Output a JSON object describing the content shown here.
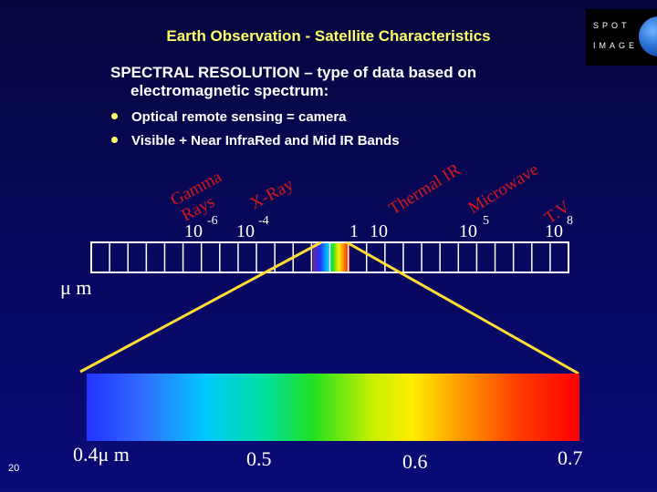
{
  "slide_title": "Earth Observation - Satellite Characteristics",
  "logo": {
    "line1": "SPOT",
    "line2": "IMAGE"
  },
  "heading": {
    "line1": "SPECTRAL RESOLUTION – type of data based on",
    "line2": "electromagnetic spectrum:"
  },
  "bullets": [
    "Optical remote sensing = camera",
    "Visible + Near InfraRed and Mid IR Bands"
  ],
  "spectrum_labels": {
    "gamma_1": "Gamma",
    "gamma_2": "Rays",
    "xray": "X-Ray",
    "thermal": "Thermal IR",
    "microwave": "Microwave",
    "tv": "T.V"
  },
  "scale_labels": {
    "t1": "10",
    "e1": "-6",
    "t2": "10",
    "e2": "-4",
    "t3": "1",
    "t4": "10",
    "t5": "10",
    "e5": "5",
    "t6": "10",
    "e6": "8"
  },
  "unit": "μ m",
  "visible_band_labels": {
    "v1": "0.4μ m",
    "v2": "0.5",
    "v3": "0.6",
    "v4": "0.7"
  },
  "slide_number": "20",
  "colors": {
    "title": "#ffff66",
    "accent_lines": "#ffdd33",
    "bullet": "#ffff66",
    "label_red": "#d81818"
  }
}
